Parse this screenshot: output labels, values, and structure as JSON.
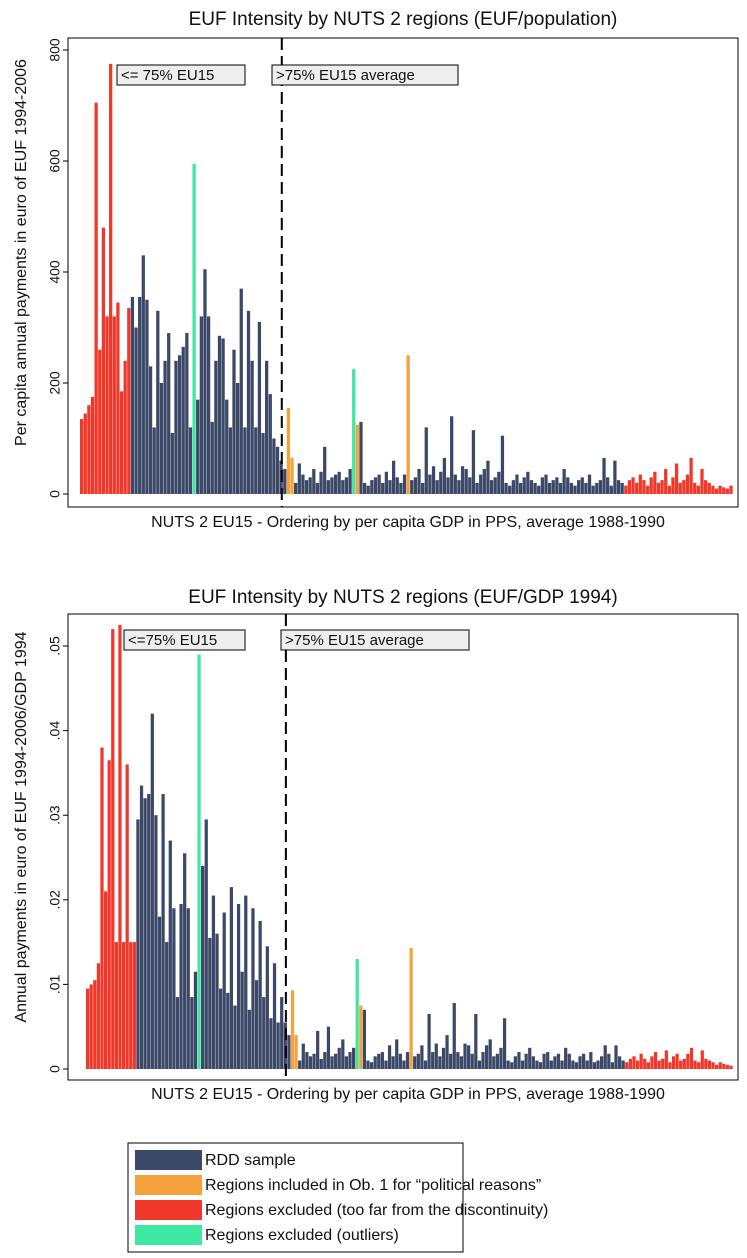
{
  "chart_data": [
    {
      "type": "bar",
      "title": "EUF Intensity by NUTS 2 regions (EUF/population)",
      "ylabel": "Per capita annual payments in euro of EUF 1994-2006",
      "xlabel": "NUTS 2 EU15 - Ordering by per capita GDP in PPS, average 1988-1990",
      "annotations": [
        "<= 75% EU15",
        ">75% EU15 average"
      ],
      "ylim": [
        0,
        820
      ],
      "yticks": [
        0,
        200,
        400,
        600,
        800
      ],
      "values": [
        135,
        145,
        160,
        175,
        705,
        260,
        480,
        320,
        775,
        320,
        345,
        185,
        240,
        335,
        355,
        300,
        355,
        430,
        350,
        230,
        120,
        330,
        200,
        240,
        290,
        110,
        240,
        250,
        265,
        290,
        120,
        595,
        170,
        320,
        405,
        320,
        130,
        240,
        285,
        280,
        170,
        120,
        260,
        200,
        370,
        120,
        330,
        240,
        120,
        310,
        110,
        240,
        180,
        100,
        85,
        60,
        45,
        155,
        65,
        20,
        55,
        35,
        25,
        30,
        45,
        20,
        40,
        85,
        25,
        30,
        35,
        40,
        25,
        30,
        45,
        225,
        125,
        130,
        20,
        15,
        25,
        30,
        35,
        20,
        40,
        25,
        60,
        30,
        20,
        35,
        250,
        25,
        30,
        45,
        20,
        120,
        35,
        50,
        25,
        40,
        65,
        30,
        140,
        35,
        25,
        50,
        45,
        30,
        115,
        20,
        35,
        45,
        60,
        25,
        30,
        40,
        105,
        20,
        15,
        25,
        35,
        20,
        30,
        40,
        25,
        20,
        15,
        30,
        35,
        20,
        25,
        30,
        20,
        45,
        30,
        20,
        15,
        25,
        30,
        20,
        35,
        15,
        20,
        25,
        65,
        30,
        15,
        60,
        25,
        20,
        15,
        25,
        30,
        20,
        35,
        25,
        15,
        30,
        40,
        20,
        25,
        45,
        15,
        30,
        55,
        20,
        25,
        35,
        65,
        20,
        15,
        45,
        25,
        20,
        15,
        10,
        15,
        12,
        10,
        15
      ],
      "groups": [
        2,
        2,
        2,
        2,
        2,
        2,
        2,
        2,
        2,
        2,
        2,
        2,
        2,
        2,
        0,
        0,
        0,
        0,
        0,
        0,
        0,
        0,
        0,
        0,
        0,
        0,
        0,
        0,
        0,
        0,
        0,
        3,
        0,
        0,
        0,
        0,
        0,
        0,
        0,
        0,
        0,
        0,
        0,
        0,
        0,
        0,
        0,
        0,
        0,
        0,
        0,
        0,
        0,
        0,
        0,
        0,
        0,
        1,
        1,
        0,
        0,
        0,
        0,
        0,
        0,
        0,
        0,
        0,
        0,
        0,
        0,
        0,
        0,
        0,
        0,
        3,
        1,
        0,
        0,
        0,
        0,
        0,
        0,
        0,
        0,
        0,
        0,
        0,
        0,
        0,
        1,
        0,
        0,
        0,
        0,
        0,
        0,
        0,
        0,
        0,
        0,
        0,
        0,
        0,
        0,
        0,
        0,
        0,
        0,
        0,
        0,
        0,
        0,
        0,
        0,
        0,
        0,
        0,
        0,
        0,
        0,
        0,
        0,
        0,
        0,
        0,
        0,
        0,
        0,
        0,
        0,
        0,
        0,
        0,
        0,
        0,
        0,
        0,
        0,
        0,
        0,
        0,
        0,
        0,
        0,
        0,
        0,
        0,
        0,
        0,
        2,
        2,
        2,
        2,
        2,
        2,
        2,
        2,
        2,
        2,
        2,
        2,
        2,
        2,
        2,
        2,
        2,
        2,
        2,
        2,
        2,
        2,
        2,
        2,
        2,
        2,
        2,
        2,
        2,
        2
      ]
    },
    {
      "type": "bar",
      "title": "EUF Intensity by NUTS 2 regions (EUF/GDP 1994)",
      "ylabel": "Annual payments in euro of EUF 1994-2006/GDP 1994",
      "xlabel": "NUTS 2 EU15 - Ordering by per capita GDP in PPS, average 1988-1990",
      "annotations": [
        "<=75% EU15",
        ">75% EU15 average"
      ],
      "ylim": [
        0,
        0.054
      ],
      "yticks": [
        0,
        {
          "value": 0.01,
          "label": ".01"
        },
        {
          "value": 0.02,
          "label": ".02"
        },
        {
          "value": 0.03,
          "label": ".03"
        },
        {
          "value": 0.04,
          "label": ".04"
        },
        {
          "value": 0.05,
          "label": ".05"
        }
      ],
      "values": [
        0.0095,
        0.01,
        0.0105,
        0.0125,
        0.038,
        0.021,
        0.0365,
        0.052,
        0.015,
        0.0525,
        0.015,
        0.036,
        0.015,
        0.015,
        0.0295,
        0.0335,
        0.032,
        0.0325,
        0.042,
        0.03,
        0.018,
        0.0325,
        0.015,
        0.027,
        0.019,
        0.0085,
        0.0195,
        0.0255,
        0.019,
        0.0085,
        0.0115,
        0.049,
        0.024,
        0.0295,
        0.0155,
        0.0205,
        0.016,
        0.0095,
        0.0185,
        0.009,
        0.0215,
        0.0075,
        0.0195,
        0.0115,
        0.0205,
        0.007,
        0.019,
        0.0105,
        0.0175,
        0.0085,
        0.0145,
        0.006,
        0.0125,
        0.0055,
        0.0085,
        0.0055,
        0.004,
        0.0093,
        0.004,
        0.001,
        0.003,
        0.002,
        0.0015,
        0.0018,
        0.0045,
        0.0012,
        0.002,
        0.005,
        0.0015,
        0.0018,
        0.0025,
        0.0035,
        0.0015,
        0.002,
        0.0025,
        0.013,
        0.0075,
        0.007,
        0.001,
        0.0008,
        0.0015,
        0.0018,
        0.002,
        0.001,
        0.0028,
        0.0015,
        0.0035,
        0.0018,
        0.001,
        0.002,
        0.0143,
        0.0015,
        0.0018,
        0.0028,
        0.001,
        0.0065,
        0.002,
        0.003,
        0.0015,
        0.0025,
        0.004,
        0.0018,
        0.0078,
        0.002,
        0.0015,
        0.003,
        0.0028,
        0.0018,
        0.0065,
        0.001,
        0.002,
        0.0028,
        0.0035,
        0.0015,
        0.0018,
        0.0025,
        0.006,
        0.001,
        0.0008,
        0.0015,
        0.002,
        0.001,
        0.0018,
        0.0025,
        0.0015,
        0.001,
        0.0008,
        0.0018,
        0.002,
        0.001,
        0.0015,
        0.0018,
        0.001,
        0.0025,
        0.0018,
        0.001,
        0.0008,
        0.0015,
        0.0018,
        0.001,
        0.002,
        0.0008,
        0.001,
        0.0015,
        0.0028,
        0.0018,
        0.0008,
        0.0028,
        0.0015,
        0.001,
        0.0008,
        0.0012,
        0.0015,
        0.001,
        0.0018,
        0.0012,
        0.0008,
        0.0015,
        0.002,
        0.001,
        0.0012,
        0.0022,
        0.0008,
        0.0015,
        0.0018,
        0.001,
        0.0012,
        0.0018,
        0.0025,
        0.001,
        0.0008,
        0.0022,
        0.0012,
        0.001,
        0.0008,
        0.0005,
        0.0008,
        0.0006,
        0.0005,
        0.0004
      ],
      "groups": [
        2,
        2,
        2,
        2,
        2,
        2,
        2,
        2,
        2,
        2,
        2,
        2,
        2,
        2,
        0,
        0,
        0,
        0,
        0,
        0,
        0,
        0,
        0,
        0,
        0,
        0,
        0,
        0,
        0,
        0,
        0,
        3,
        0,
        0,
        0,
        0,
        0,
        0,
        0,
        0,
        0,
        0,
        0,
        0,
        0,
        0,
        0,
        0,
        0,
        0,
        0,
        0,
        0,
        0,
        0,
        0,
        0,
        1,
        1,
        0,
        0,
        0,
        0,
        0,
        0,
        0,
        0,
        0,
        0,
        0,
        0,
        0,
        0,
        0,
        0,
        3,
        1,
        0,
        0,
        0,
        0,
        0,
        0,
        0,
        0,
        0,
        0,
        0,
        0,
        0,
        1,
        0,
        0,
        0,
        0,
        0,
        0,
        0,
        0,
        0,
        0,
        0,
        0,
        0,
        0,
        0,
        0,
        0,
        0,
        0,
        0,
        0,
        0,
        0,
        0,
        0,
        0,
        0,
        0,
        0,
        0,
        0,
        0,
        0,
        0,
        0,
        0,
        0,
        0,
        0,
        0,
        0,
        0,
        0,
        0,
        0,
        0,
        0,
        0,
        0,
        0,
        0,
        0,
        0,
        0,
        0,
        0,
        0,
        0,
        0,
        2,
        2,
        2,
        2,
        2,
        2,
        2,
        2,
        2,
        2,
        2,
        2,
        2,
        2,
        2,
        2,
        2,
        2,
        2,
        2,
        2,
        2,
        2,
        2,
        2,
        2,
        2,
        2,
        2,
        2
      ]
    }
  ],
  "legend": [
    {
      "name": "RDD sample",
      "color": "#3c4868"
    },
    {
      "name": "Regions included in Ob. 1 for “political reasons”",
      "color": "#f5a23c"
    },
    {
      "name": "Regions excluded (too far from the discontinuity)",
      "color": "#f0382a"
    },
    {
      "name": "Regions excluded (outliers)",
      "color": "#3ee8a2"
    }
  ]
}
